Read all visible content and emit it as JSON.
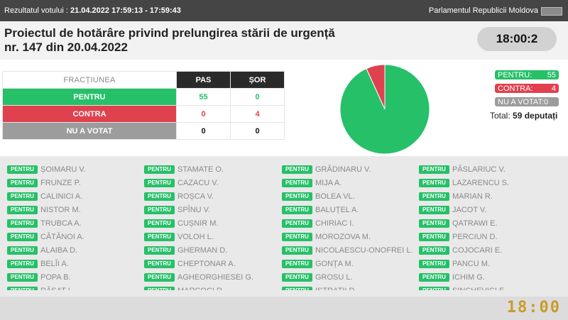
{
  "header": {
    "vote_prefix": "Rezultatul votului :",
    "vote_info": "21.04.2022 17:59:13 - 17:59:43",
    "institution": "Parlamentul Republicii Moldova"
  },
  "title": {
    "line1": "Proiectul de hotărâre privind prelungirea stării de urgență",
    "line2": "nr. 147 din 20.04.2022"
  },
  "clock": "18:00:2",
  "table": {
    "header": [
      "FRACȚIUNEA",
      "PAS",
      "ȘOR"
    ],
    "rows": [
      {
        "label": "PENTRU",
        "pas": "55",
        "sor": "0"
      },
      {
        "label": "CONTRA",
        "pas": "0",
        "sor": "4"
      },
      {
        "label": "NU A VOTAT",
        "pas": "0",
        "sor": "0"
      }
    ]
  },
  "pie": {
    "pentru": 55,
    "contra": 4,
    "nu_a_votat": 0,
    "colors": {
      "pentru": "#26c068",
      "contra": "#e0414e",
      "nu_a_votat": "#9c9c9c"
    }
  },
  "legend": {
    "pentru_label": "PENTRU:",
    "pentru_value": "55",
    "contra_label": "CONTRA:",
    "contra_value": "4",
    "nuvot_label": "NU A VOTAT:0",
    "total_label": "Total:",
    "total_value": "59 deputați"
  },
  "vote_badge": "PENTRU",
  "deputies": [
    [
      "ȘOIMARU V.",
      "FRUNZE P.",
      "CALINICI A.",
      "NISTOR M.",
      "TRUBCA A.",
      "CĂTĂNOI A.",
      "ALAIBA D.",
      "BELÎI A.",
      "POPA B.",
      "RĂSAT I."
    ],
    [
      "STAMATE O.",
      "CAZACU V.",
      "ROȘCA V.",
      "SPÎNU V.",
      "CUȘNIR M.",
      "VOLOH L.",
      "GHERMAN D.",
      "CHEPTONAR A.",
      "AGHEORGHIESEI G.",
      "MARCOCI R."
    ],
    [
      "GRĂDINARU V.",
      "MIJA A.",
      "BOLEA VL.",
      "BALUȚEL A.",
      "CHIRIAC I.",
      "MOROZOVA M.",
      "NICOLAESCU-ONOFREI L.",
      "GONȚA M.",
      "GROSU L.",
      "ISTRATII D."
    ],
    [
      "PĂSLARIUC V.",
      "LAZARENCU S.",
      "MARIAN R.",
      "JACOT V.",
      "QATRAWI E.",
      "PERCIUN D.",
      "COJOCARI E.",
      "PANCU M.",
      "ICHIM G.",
      "SINCHEVICI E."
    ]
  ],
  "corner_clock": "18:00"
}
